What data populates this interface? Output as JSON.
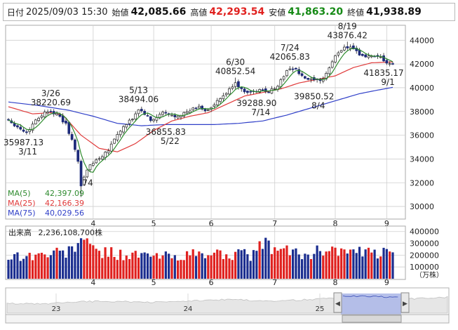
{
  "header": {
    "date_label": "日付",
    "datetime": "2025/09/03 15:30",
    "open_label": "始値",
    "open_value": "42,085.66",
    "high_label": "高値",
    "high_value": "42,293.54",
    "low_label": "安値",
    "low_value": "41,863.20",
    "close_label": "終値",
    "close_value": "41,938.89"
  },
  "colors": {
    "up": "#1a2d8f",
    "down": "#e0211f",
    "ma5": "#2e8b2e",
    "ma25": "#e03a3a",
    "ma75": "#2f3fc8",
    "grid": "#cfcfcf",
    "frame": "#a8a8a8",
    "navigator_fill": "#aeb9e8"
  },
  "chart_data": [
    {
      "type": "candlestick",
      "name": "price",
      "y_ticks": [
        "30000",
        "32000",
        "34000",
        "36000",
        "38000",
        "40000",
        "42000",
        "44000"
      ],
      "ylim": [
        29000,
        45200
      ],
      "x_tick_labels": [
        "4",
        "5",
        "6",
        "7",
        "8",
        "9"
      ],
      "legend": [
        {
          "label": "MA(5)",
          "value": "42,397.09",
          "color": "ma5"
        },
        {
          "label": "MA(25)",
          "value": "42,166.39",
          "color": "ma25"
        },
        {
          "label": "MA(75)",
          "value": "40,029.56",
          "color": "ma75"
        }
      ],
      "annotations": [
        {
          "value": "38220.69",
          "date": "3/26",
          "kind": "high"
        },
        {
          "value": "35987.13",
          "date": "3/11",
          "kind": "low"
        },
        {
          "value": "30792.74",
          "display": "74",
          "date": "4/7",
          "kind": "low"
        },
        {
          "value": "38494.06",
          "date": "5/13",
          "kind": "high"
        },
        {
          "value": "36855.83",
          "date": "5/22",
          "kind": "low"
        },
        {
          "value": "40852.54",
          "date": "6/30",
          "kind": "high"
        },
        {
          "value": "39288.90",
          "date": "7/14",
          "kind": "low"
        },
        {
          "value": "42065.83",
          "date": "7/24",
          "kind": "high"
        },
        {
          "value": "39850.52",
          "date": "8/4",
          "kind": "low"
        },
        {
          "value": "43876.42",
          "date": "8/19",
          "kind": "high"
        },
        {
          "value": "41835.17",
          "date": "9/1",
          "kind": "low"
        }
      ],
      "close_anchors": [
        [
          0,
          37300
        ],
        [
          3,
          36700
        ],
        [
          6,
          36200
        ],
        [
          9,
          37300
        ],
        [
          12,
          37900
        ],
        [
          14,
          38100
        ],
        [
          17,
          37500
        ],
        [
          19,
          36900
        ],
        [
          21,
          35600
        ],
        [
          23,
          33800
        ],
        [
          24,
          31800
        ],
        [
          25,
          32500
        ],
        [
          27,
          33500
        ],
        [
          29,
          33900
        ],
        [
          31,
          34300
        ],
        [
          33,
          34800
        ],
        [
          35,
          35700
        ],
        [
          37,
          36400
        ],
        [
          39,
          36900
        ],
        [
          41,
          37400
        ],
        [
          43,
          38200
        ],
        [
          45,
          37800
        ],
        [
          47,
          37200
        ],
        [
          49,
          37500
        ],
        [
          51,
          37900
        ],
        [
          53,
          37700
        ],
        [
          55,
          37600
        ],
        [
          57,
          37800
        ],
        [
          59,
          37900
        ],
        [
          61,
          38200
        ],
        [
          63,
          38400
        ],
        [
          65,
          38100
        ],
        [
          67,
          38300
        ],
        [
          69,
          38800
        ],
        [
          71,
          39300
        ],
        [
          73,
          39800
        ],
        [
          75,
          40500
        ],
        [
          77,
          39800
        ],
        [
          79,
          39700
        ],
        [
          81,
          39600
        ],
        [
          83,
          39800
        ],
        [
          85,
          39700
        ],
        [
          87,
          39800
        ],
        [
          89,
          40200
        ],
        [
          91,
          41000
        ],
        [
          93,
          41700
        ],
        [
          95,
          41500
        ],
        [
          97,
          40900
        ],
        [
          99,
          40700
        ],
        [
          101,
          40600
        ],
        [
          103,
          40500
        ],
        [
          105,
          41200
        ],
        [
          107,
          42200
        ],
        [
          109,
          43000
        ],
        [
          111,
          43400
        ],
        [
          113,
          43500
        ],
        [
          115,
          43100
        ],
        [
          117,
          42600
        ],
        [
          119,
          42700
        ],
        [
          121,
          42500
        ],
        [
          123,
          42500
        ],
        [
          125,
          42100
        ],
        [
          127,
          41900
        ]
      ],
      "ma25_anchors": [
        [
          0,
          38400
        ],
        [
          8,
          37800
        ],
        [
          14,
          37900
        ],
        [
          18,
          37700
        ],
        [
          24,
          36000
        ],
        [
          30,
          34900
        ],
        [
          36,
          34600
        ],
        [
          42,
          35300
        ],
        [
          48,
          36400
        ],
        [
          54,
          37200
        ],
        [
          60,
          37600
        ],
        [
          66,
          37900
        ],
        [
          72,
          38600
        ],
        [
          78,
          39300
        ],
        [
          84,
          39600
        ],
        [
          90,
          39900
        ],
        [
          96,
          40400
        ],
        [
          102,
          40700
        ],
        [
          108,
          41000
        ],
        [
          114,
          41700
        ],
        [
          120,
          42100
        ],
        [
          127,
          42170
        ]
      ],
      "ma75_anchors": [
        [
          0,
          38800
        ],
        [
          10,
          38500
        ],
        [
          20,
          38100
        ],
        [
          28,
          37600
        ],
        [
          36,
          37000
        ],
        [
          44,
          36800
        ],
        [
          52,
          36900
        ],
        [
          60,
          36900
        ],
        [
          68,
          36900
        ],
        [
          76,
          37000
        ],
        [
          84,
          37200
        ],
        [
          92,
          37700
        ],
        [
          100,
          38300
        ],
        [
          108,
          38900
        ],
        [
          116,
          39500
        ],
        [
          122,
          39800
        ],
        [
          127,
          40030
        ]
      ]
    },
    {
      "type": "bar",
      "name": "volume",
      "title": "出来高",
      "latest_value": "2,236,108,700株",
      "y_ticks": [
        "100000",
        "200000",
        "300000",
        "400000"
      ],
      "ylim": [
        0,
        440000
      ],
      "unit": "（万株）",
      "x_tick_labels": [
        "4",
        "5",
        "6",
        "7",
        "8",
        "9"
      ],
      "anchors": [
        [
          0,
          190000
        ],
        [
          10,
          200000
        ],
        [
          20,
          230000
        ],
        [
          23,
          300000
        ],
        [
          24,
          400000
        ],
        [
          25,
          320000
        ],
        [
          26,
          280000
        ],
        [
          30,
          230000
        ],
        [
          40,
          200000
        ],
        [
          50,
          190000
        ],
        [
          60,
          200000
        ],
        [
          70,
          210000
        ],
        [
          80,
          200000
        ],
        [
          84,
          290000
        ],
        [
          90,
          240000
        ],
        [
          100,
          200000
        ],
        [
          105,
          270000
        ],
        [
          110,
          230000
        ],
        [
          120,
          210000
        ],
        [
          127,
          223000
        ]
      ]
    },
    {
      "type": "area",
      "name": "navigator",
      "x_tick_labels": [
        "23",
        "24",
        "25"
      ]
    }
  ]
}
